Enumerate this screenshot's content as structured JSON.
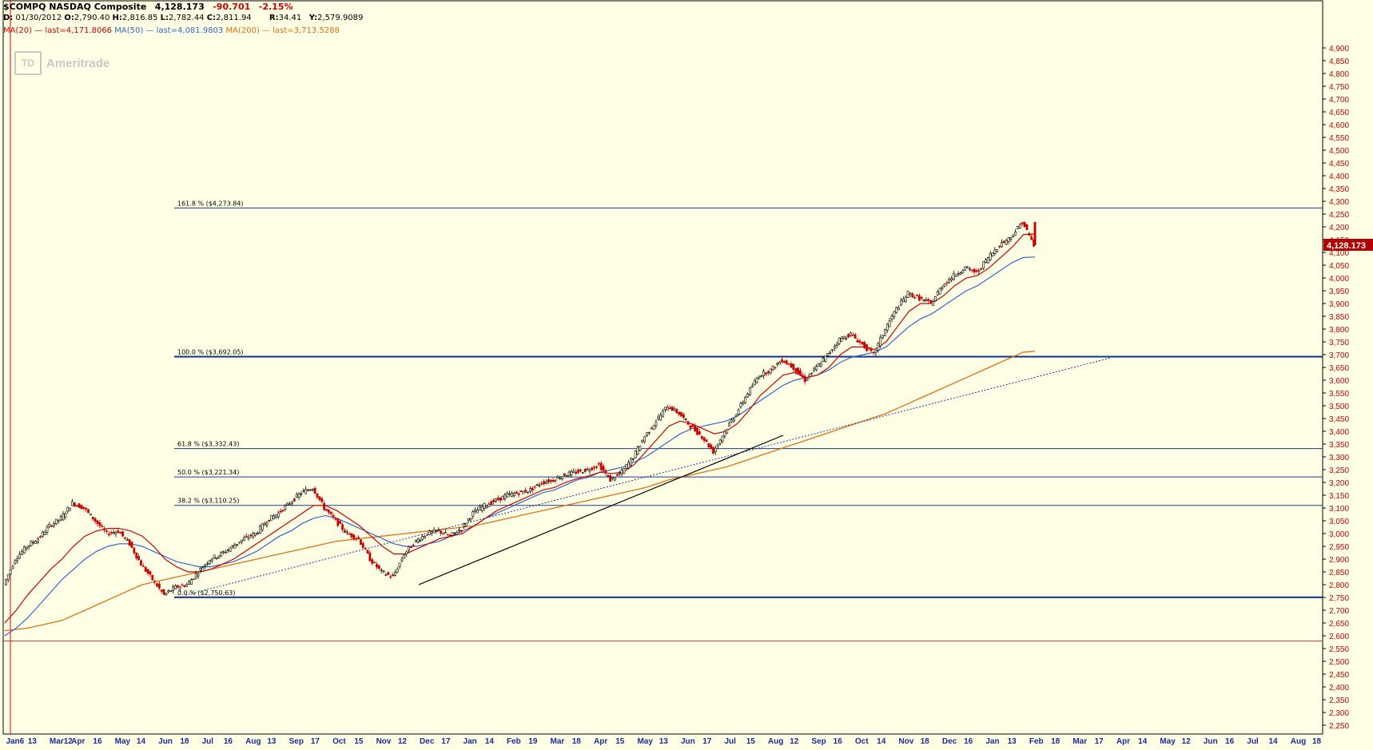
{
  "header": {
    "symbol_title": "$COMPQ NASDAQ Composite",
    "last": "4,128.173",
    "change": "-90.701",
    "change_pct": "-2.15%",
    "date_label": "D:",
    "date": "01/30/2012",
    "open_label": "O:",
    "open": "2,790.40",
    "high_label": "H:",
    "high": "2,816.85",
    "low_label": "L:",
    "low": "2,782.44",
    "close_label": "C:",
    "close": "2,811.94",
    "r_label": "R:",
    "r": "34.41",
    "y_label": "Y:",
    "y": "2,579.9089",
    "ma20_label": "MA(20)",
    "ma20_last": "last=4,171.8066",
    "ma50_label": "MA(50)",
    "ma50_last": "last=4,081.9803",
    "ma200_label": "MA(200)",
    "ma200_last": "last=3,713.5288"
  },
  "logo": {
    "mark": "TD",
    "text": "Ameritrade"
  },
  "colors": {
    "background": "#ffffe6",
    "up": "#000000",
    "down": "#cc0000",
    "ma20": "#cc0000",
    "ma50": "#3366cc",
    "ma200": "#e07010",
    "fib": "#1a3a8c",
    "axis_label": "#cc0000",
    "date_label": "#1a2aa0"
  },
  "chart_data": {
    "type": "candlestick",
    "y_axis_side": "right",
    "ylim": [
      2200,
      5000
    ],
    "y_ticks": [
      2250,
      2300,
      2350,
      2400,
      2450,
      2500,
      2550,
      2600,
      2650,
      2700,
      2750,
      2800,
      2850,
      2900,
      2950,
      3000,
      3050,
      3100,
      3150,
      3200,
      3250,
      3300,
      3350,
      3400,
      3450,
      3500,
      3550,
      3600,
      3650,
      3700,
      3750,
      3800,
      3850,
      3900,
      3950,
      4000,
      4050,
      4100,
      4150,
      4200,
      4250,
      4300,
      4350,
      4400,
      4450,
      4500,
      4550,
      4600,
      4650,
      4700,
      4750,
      4800,
      4850,
      4900
    ],
    "y_tick_labels": [
      "2,250",
      "2,300",
      "2,350",
      "2,400",
      "2,450",
      "2,500",
      "2,550",
      "2,600",
      "2,650",
      "2,700",
      "2,750",
      "2,800",
      "2,850",
      "2,900",
      "2,950",
      "3,000",
      "3,050",
      "3,100",
      "3,150",
      "3,200",
      "3,250",
      "3,300",
      "3,350",
      "3,400",
      "3,450",
      "3,500",
      "3,550",
      "3,600",
      "3,650",
      "3,700",
      "3,750",
      "3,800",
      "3,850",
      "3,900",
      "3,950",
      "4,000",
      "4,050",
      "4,100",
      "4,150",
      "4,200",
      "4,250",
      "4,300",
      "4,350",
      "4,400",
      "4,450",
      "4,500",
      "4,550",
      "4,600",
      "4,650",
      "4,700",
      "4,750",
      "4,800",
      "4,850",
      "4,900"
    ],
    "last_price_label": "4,128.173",
    "last_price": 4128.173,
    "x_dates": [
      "2012-01-06",
      "2012-03-12",
      "2012-04-16",
      "2012-05-14",
      "2012-06-18",
      "2012-07-16",
      "2012-08-13",
      "2012-09-17",
      "2012-10-15",
      "2012-11-12",
      "2012-12-17",
      "2013-01-14",
      "2013-02-19",
      "2013-03-18",
      "2013-04-15",
      "2013-05-13",
      "2013-06-17",
      "2013-07-15",
      "2013-08-12",
      "2013-09-16",
      "2013-10-14",
      "2013-11-18",
      "2013-12-16",
      "2014-01-13",
      "2014-02-18",
      "2014-03-17",
      "2014-04-14",
      "2014-05-12",
      "2014-06-16",
      "2014-07-14",
      "2014-08-18"
    ],
    "x_tick_labels": [
      "Jan6",
      "13",
      "Mar12",
      "Apr",
      "16",
      "May",
      "14",
      "Jun",
      "18",
      "Jul",
      "16",
      "Aug",
      "13",
      "Sep",
      "17",
      "Oct",
      "15",
      "Nov",
      "12",
      "Dec",
      "17",
      "Jan",
      "14",
      "Feb",
      "19",
      "Mar",
      "18",
      "Apr",
      "15",
      "May",
      "13",
      "Jun",
      "17",
      "Jul",
      "15",
      "Aug",
      "12",
      "Sep",
      "16",
      "Oct",
      "14",
      "Nov",
      "18",
      "Dec",
      "16",
      "Jan",
      "13",
      "Feb",
      "18",
      "Mar",
      "17",
      "Apr",
      "14",
      "May",
      "12",
      "Jun",
      "16",
      "Jul",
      "14",
      "Aug",
      "18"
    ],
    "x_label_positions": [
      5,
      30,
      55,
      80,
      105,
      130,
      155,
      180,
      205,
      230,
      255,
      280,
      305,
      330,
      355,
      380,
      405,
      430,
      455,
      480,
      505,
      530,
      555,
      580,
      605,
      630,
      655,
      680,
      705,
      730,
      755,
      780,
      805,
      830,
      855,
      880,
      905,
      930,
      955,
      980,
      1005,
      1030,
      1055,
      1080,
      1105,
      1130,
      1155,
      1180,
      1205,
      1230,
      1255,
      1280,
      1305,
      1330,
      1355,
      1380,
      1405,
      1430,
      1455,
      1480,
      1505
    ],
    "fibonacci": [
      {
        "label": "161.8 %",
        "price_label": "($4,273.84)",
        "value": 4273.84
      },
      {
        "label": "100.0 %",
        "price_label": "($3,692.05)",
        "value": 3692.05
      },
      {
        "label": "61.8 %",
        "price_label": "($3,332.43)",
        "value": 3332.43
      },
      {
        "label": "50.0 %",
        "price_label": "($3,221.34)",
        "value": 3221.34
      },
      {
        "label": "38.2 %",
        "price_label": "($3,110.25)",
        "value": 3110.25
      },
      {
        "label": "0.0 %",
        "price_label": "($2,750.63)",
        "value": 2750.63
      }
    ],
    "horizontal_line_red": 2580,
    "closes_weekly": [
      2800,
      2900,
      2950,
      2980,
      3030,
      3060,
      3120,
      3100,
      3050,
      3000,
      3010,
      2960,
      2880,
      2820,
      2760,
      2790,
      2800,
      2850,
      2900,
      2920,
      2950,
      2980,
      3000,
      3050,
      3080,
      3120,
      3160,
      3180,
      3100,
      3050,
      3000,
      2980,
      2900,
      2850,
      2830,
      2920,
      2970,
      3000,
      3010,
      2990,
      3020,
      3080,
      3110,
      3130,
      3150,
      3160,
      3170,
      3200,
      3210,
      3230,
      3240,
      3250,
      3270,
      3210,
      3240,
      3300,
      3380,
      3440,
      3500,
      3470,
      3420,
      3380,
      3320,
      3400,
      3470,
      3550,
      3620,
      3640,
      3680,
      3650,
      3600,
      3650,
      3700,
      3760,
      3780,
      3740,
      3700,
      3800,
      3880,
      3940,
      3920,
      3900,
      3970,
      4010,
      4040,
      4020,
      4080,
      4130,
      4160,
      4220,
      4128
    ],
    "ma20_weekly": [
      2650,
      2700,
      2760,
      2810,
      2860,
      2900,
      2950,
      2990,
      3010,
      3020,
      3020,
      3010,
      2990,
      2950,
      2900,
      2870,
      2850,
      2850,
      2860,
      2880,
      2900,
      2930,
      2960,
      2990,
      3020,
      3050,
      3080,
      3110,
      3110,
      3090,
      3060,
      3030,
      2990,
      2950,
      2920,
      2920,
      2940,
      2960,
      2980,
      2990,
      3000,
      3030,
      3060,
      3090,
      3110,
      3130,
      3150,
      3170,
      3180,
      3200,
      3215,
      3225,
      3240,
      3235,
      3240,
      3270,
      3320,
      3370,
      3420,
      3440,
      3430,
      3410,
      3390,
      3400,
      3430,
      3480,
      3540,
      3580,
      3620,
      3630,
      3610,
      3620,
      3650,
      3700,
      3730,
      3730,
      3720,
      3750,
      3810,
      3870,
      3900,
      3900,
      3930,
      3970,
      4000,
      4010,
      4040,
      4080,
      4120,
      4170,
      4172
    ],
    "ma50_weekly": [
      2600,
      2630,
      2670,
      2720,
      2770,
      2820,
      2860,
      2900,
      2930,
      2950,
      2960,
      2960,
      2950,
      2930,
      2910,
      2890,
      2880,
      2870,
      2870,
      2880,
      2890,
      2910,
      2930,
      2960,
      2990,
      3010,
      3040,
      3060,
      3070,
      3060,
      3040,
      3020,
      3000,
      2980,
      2960,
      2950,
      2950,
      2960,
      2970,
      2990,
      3010,
      3030,
      3060,
      3080,
      3100,
      3120,
      3140,
      3160,
      3170,
      3190,
      3210,
      3220,
      3240,
      3250,
      3260,
      3280,
      3300,
      3330,
      3360,
      3390,
      3410,
      3420,
      3430,
      3440,
      3460,
      3490,
      3520,
      3550,
      3580,
      3600,
      3610,
      3620,
      3640,
      3670,
      3690,
      3700,
      3710,
      3730,
      3770,
      3810,
      3840,
      3860,
      3890,
      3920,
      3950,
      3970,
      4000,
      4030,
      4060,
      4080,
      4082
    ],
    "ma200_weekly": [
      2620,
      2625,
      2630,
      2640,
      2650,
      2660,
      2680,
      2700,
      2720,
      2740,
      2760,
      2780,
      2800,
      2810,
      2820,
      2830,
      2840,
      2850,
      2860,
      2870,
      2880,
      2890,
      2900,
      2910,
      2920,
      2930,
      2940,
      2950,
      2960,
      2970,
      2975,
      2980,
      2985,
      2990,
      2995,
      3000,
      3005,
      3010,
      3015,
      3020,
      3025,
      3030,
      3040,
      3050,
      3060,
      3070,
      3080,
      3090,
      3100,
      3110,
      3120,
      3130,
      3140,
      3150,
      3160,
      3170,
      3180,
      3195,
      3210,
      3220,
      3230,
      3240,
      3250,
      3260,
      3275,
      3290,
      3305,
      3320,
      3335,
      3350,
      3365,
      3380,
      3395,
      3410,
      3425,
      3440,
      3455,
      3470,
      3490,
      3510,
      3530,
      3550,
      3570,
      3590,
      3610,
      3630,
      3650,
      3670,
      3690,
      3710,
      3713
    ]
  }
}
